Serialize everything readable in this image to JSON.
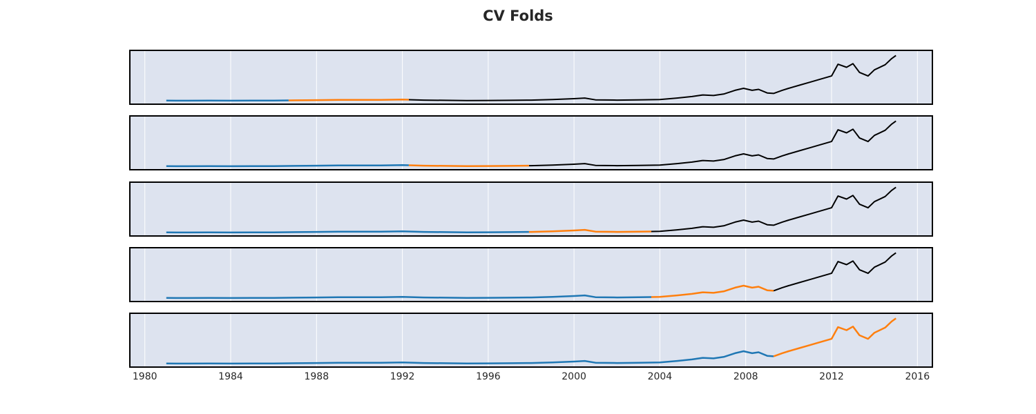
{
  "chart_data": {
    "type": "line",
    "title": "CV Folds",
    "xlabel": "",
    "ylabel": "",
    "xlim": [
      1979.3,
      2016.7
    ],
    "ylim": [
      -5,
      100
    ],
    "x_ticks": [
      "1980",
      "1984",
      "1988",
      "1992",
      "1996",
      "2000",
      "2004",
      "2008",
      "2012",
      "2016"
    ],
    "grid": "vertical",
    "legend": "none",
    "colors": {
      "train": "#1f77b4",
      "test": "#ff7f0e",
      "unused": "#000000",
      "panel_bg": "#dde3ef",
      "grid": "#ffffff"
    },
    "series_values": {
      "x": [
        1981,
        1982,
        1983,
        1984,
        1985,
        1986,
        1987,
        1988,
        1989,
        1990,
        1991,
        1992,
        1993,
        1994,
        1995,
        1996,
        1997,
        1998,
        1999,
        2000,
        2000.5,
        2001,
        2002,
        2003,
        2004,
        2004.8,
        2005.5,
        2006,
        2006.5,
        2007,
        2007.5,
        2007.9,
        2008.3,
        2008.6,
        2009,
        2009.3,
        2009.7,
        2010,
        2010.5,
        2011,
        2011.5,
        2012,
        2012.3,
        2012.7,
        2013,
        2013.3,
        2013.7,
        2014,
        2014.5,
        2014.8,
        2015
      ],
      "y": [
        2,
        1.8,
        2,
        1.8,
        2.2,
        2,
        2.5,
        3,
        3.3,
        3.3,
        3.5,
        4,
        3,
        2.5,
        2.2,
        2.3,
        2.5,
        3,
        4,
        5.8,
        7,
        3.5,
        3,
        3.3,
        4,
        7,
        10,
        13,
        12,
        15,
        22,
        26,
        22,
        24,
        17,
        16,
        22,
        26,
        32,
        38,
        44,
        50,
        73,
        67,
        74,
        57,
        50,
        62,
        72,
        84,
        90
      ]
    },
    "folds": [
      {
        "train": [
          1981.0,
          1986.7
        ],
        "test": [
          1986.7,
          1992.3
        ]
      },
      {
        "train": [
          1981.0,
          1992.3
        ],
        "test": [
          1992.3,
          1997.9
        ]
      },
      {
        "train": [
          1981.0,
          1997.9
        ],
        "test": [
          1997.9,
          2003.6
        ]
      },
      {
        "train": [
          1981.0,
          2003.6
        ],
        "test": [
          2003.6,
          2009.3
        ]
      },
      {
        "train": [
          1981.0,
          2009.3
        ],
        "test": [
          2009.3,
          2015.0
        ]
      }
    ]
  }
}
